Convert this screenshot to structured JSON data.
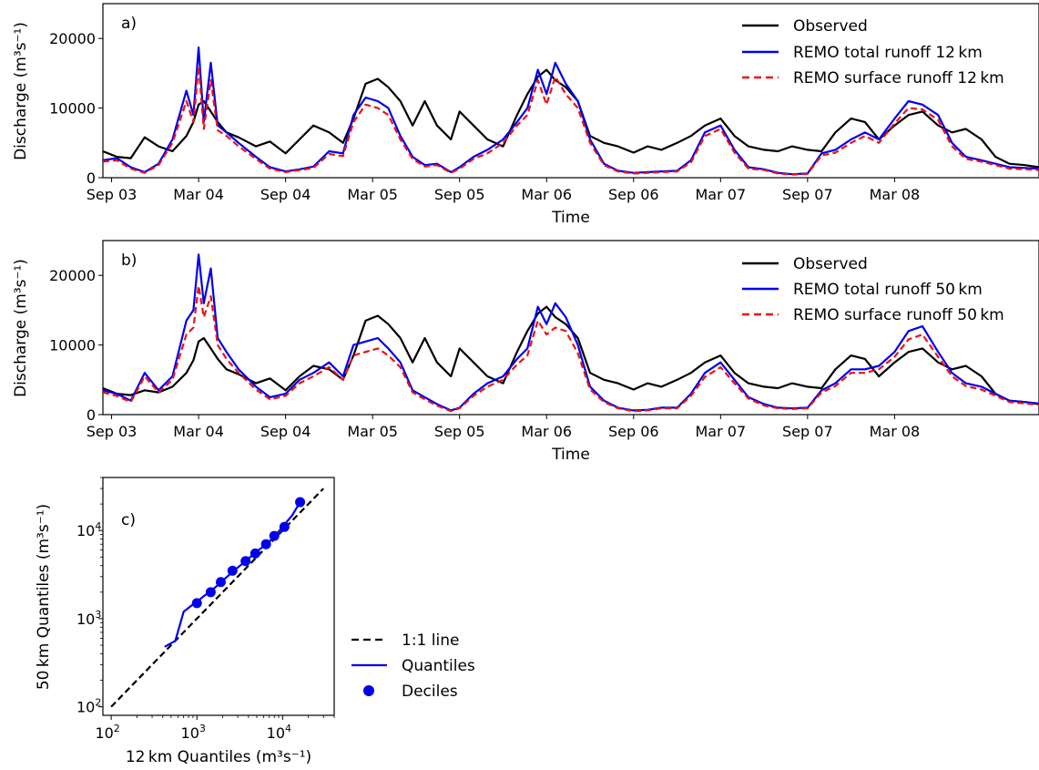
{
  "chart_data": [
    {
      "type": "line",
      "panel_label": "a)",
      "xlabel": "Time",
      "ylabel": "Discharge (m³s⁻¹)",
      "xlim": [
        2003.62,
        2009.0
      ],
      "ylim": [
        0,
        25000
      ],
      "x_ticks": [
        {
          "value": 2003.67,
          "label": "Sep 03"
        },
        {
          "value": 2004.17,
          "label": "Mar 04"
        },
        {
          "value": 2004.67,
          "label": "Sep 04"
        },
        {
          "value": 2005.17,
          "label": "Mar 05"
        },
        {
          "value": 2005.67,
          "label": "Sep 05"
        },
        {
          "value": 2006.17,
          "label": "Mar 06"
        },
        {
          "value": 2006.67,
          "label": "Sep 06"
        },
        {
          "value": 2007.17,
          "label": "Mar 07"
        },
        {
          "value": 2007.67,
          "label": "Sep 07"
        },
        {
          "value": 2008.17,
          "label": "Mar 08"
        }
      ],
      "y_ticks": [
        {
          "value": 0,
          "label": "0"
        },
        {
          "value": 10000,
          "label": "10000"
        },
        {
          "value": 20000,
          "label": "20000"
        }
      ],
      "legend_position": "top-right",
      "x": [
        2003.62,
        2003.7,
        2003.78,
        2003.86,
        2003.94,
        2004.02,
        2004.1,
        2004.14,
        2004.17,
        2004.2,
        2004.24,
        2004.28,
        2004.33,
        2004.4,
        2004.5,
        2004.58,
        2004.67,
        2004.75,
        2004.83,
        2004.92,
        2005.0,
        2005.06,
        2005.13,
        2005.2,
        2005.26,
        2005.33,
        2005.4,
        2005.47,
        2005.54,
        2005.62,
        2005.67,
        2005.75,
        2005.83,
        2005.92,
        2006.0,
        2006.06,
        2006.12,
        2006.17,
        2006.22,
        2006.28,
        2006.35,
        2006.42,
        2006.5,
        2006.58,
        2006.67,
        2006.75,
        2006.83,
        2006.92,
        2007.0,
        2007.08,
        2007.17,
        2007.25,
        2007.33,
        2007.42,
        2007.5,
        2007.58,
        2007.67,
        2007.75,
        2007.83,
        2007.92,
        2008.0,
        2008.08,
        2008.17,
        2008.25,
        2008.33,
        2008.42,
        2008.5,
        2008.58,
        2008.67,
        2008.75,
        2008.83,
        2008.92,
        2009.0
      ],
      "series": [
        {
          "name": "Observed",
          "color": "#000000",
          "dash": "solid",
          "values": [
            3800,
            3000,
            2800,
            5800,
            4500,
            3800,
            6000,
            8000,
            10500,
            11000,
            9500,
            8000,
            6500,
            5800,
            4500,
            5200,
            3500,
            5500,
            7500,
            6500,
            5000,
            8500,
            13500,
            14200,
            13000,
            11000,
            7500,
            11000,
            7500,
            5500,
            9500,
            7500,
            5500,
            4500,
            9000,
            12000,
            14500,
            15500,
            14000,
            13000,
            11000,
            6000,
            5000,
            4500,
            3600,
            4500,
            4000,
            5000,
            6000,
            7500,
            8500,
            6000,
            4500,
            4000,
            3800,
            4500,
            4000,
            3800,
            6500,
            8500,
            8000,
            5500,
            7500,
            9000,
            9500,
            7500,
            6500,
            7000,
            5500,
            3000,
            2000,
            1800,
            1500
          ]
        },
        {
          "name": "REMO total runoff 12 km",
          "color": "#0000ee",
          "dash": "solid",
          "values": [
            2500,
            2800,
            1500,
            800,
            2000,
            5500,
            12500,
            9000,
            18700,
            8000,
            16500,
            7500,
            6500,
            5000,
            3000,
            1500,
            900,
            1200,
            1600,
            3800,
            3500,
            9000,
            11500,
            11000,
            10000,
            6000,
            3000,
            1800,
            2000,
            800,
            1500,
            3000,
            4000,
            5500,
            8000,
            10000,
            15500,
            12000,
            16500,
            13500,
            11000,
            5500,
            2000,
            1000,
            700,
            800,
            900,
            1000,
            2500,
            6500,
            7500,
            4000,
            1500,
            1200,
            700,
            500,
            600,
            3500,
            4000,
            5500,
            6500,
            5500,
            8500,
            11000,
            10500,
            9000,
            5000,
            3000,
            2500,
            2000,
            1500,
            1400,
            1300
          ]
        },
        {
          "name": "REMO surface runoff 12 km",
          "color": "#ee1111",
          "dash": "dashed",
          "values": [
            2300,
            2500,
            1300,
            700,
            1800,
            5000,
            11000,
            8000,
            16000,
            7000,
            14000,
            6800,
            6000,
            4500,
            2700,
            1300,
            800,
            1100,
            1400,
            3400,
            3100,
            8000,
            10500,
            10000,
            9000,
            5500,
            2700,
            1600,
            1800,
            700,
            1300,
            2700,
            3500,
            5000,
            7500,
            9000,
            14000,
            10500,
            14500,
            12000,
            10000,
            5000,
            1800,
            900,
            600,
            700,
            800,
            900,
            2200,
            6000,
            7000,
            3600,
            1300,
            1100,
            600,
            450,
            550,
            3200,
            3600,
            5000,
            6000,
            5000,
            7800,
            10000,
            9800,
            8300,
            4500,
            2700,
            2300,
            1800,
            1300,
            1200,
            1100
          ]
        }
      ]
    },
    {
      "type": "line",
      "panel_label": "b)",
      "xlabel": "Time",
      "ylabel": "Discharge (m³s⁻¹)",
      "xlim": [
        2003.62,
        2009.0
      ],
      "ylim": [
        0,
        25000
      ],
      "x_ticks": [
        {
          "value": 2003.67,
          "label": "Sep 03"
        },
        {
          "value": 2004.17,
          "label": "Mar 04"
        },
        {
          "value": 2004.67,
          "label": "Sep 04"
        },
        {
          "value": 2005.17,
          "label": "Mar 05"
        },
        {
          "value": 2005.67,
          "label": "Sep 05"
        },
        {
          "value": 2006.17,
          "label": "Mar 06"
        },
        {
          "value": 2006.67,
          "label": "Sep 06"
        },
        {
          "value": 2007.17,
          "label": "Mar 07"
        },
        {
          "value": 2007.67,
          "label": "Sep 07"
        },
        {
          "value": 2008.17,
          "label": "Mar 08"
        }
      ],
      "y_ticks": [
        {
          "value": 0,
          "label": "0"
        },
        {
          "value": 10000,
          "label": "10000"
        },
        {
          "value": 20000,
          "label": "20000"
        }
      ],
      "legend_position": "top-right",
      "x": [
        2003.62,
        2003.7,
        2003.78,
        2003.86,
        2003.94,
        2004.02,
        2004.1,
        2004.14,
        2004.17,
        2004.2,
        2004.24,
        2004.28,
        2004.33,
        2004.4,
        2004.5,
        2004.58,
        2004.67,
        2004.75,
        2004.83,
        2004.92,
        2005.0,
        2005.06,
        2005.13,
        2005.2,
        2005.26,
        2005.33,
        2005.4,
        2005.47,
        2005.54,
        2005.62,
        2005.67,
        2005.75,
        2005.83,
        2005.92,
        2006.0,
        2006.06,
        2006.12,
        2006.17,
        2006.22,
        2006.28,
        2006.35,
        2006.42,
        2006.5,
        2006.58,
        2006.67,
        2006.75,
        2006.83,
        2006.92,
        2007.0,
        2007.08,
        2007.17,
        2007.25,
        2007.33,
        2007.42,
        2007.5,
        2007.58,
        2007.67,
        2007.75,
        2007.83,
        2007.92,
        2008.0,
        2008.08,
        2008.17,
        2008.25,
        2008.33,
        2008.42,
        2008.5,
        2008.58,
        2008.67,
        2008.75,
        2008.83,
        2008.92,
        2009.0
      ],
      "series": [
        {
          "name": "Observed",
          "color": "#000000",
          "dash": "solid",
          "values": [
            3800,
            3000,
            2800,
            3500,
            3200,
            4000,
            6000,
            7800,
            10500,
            11000,
            9500,
            8000,
            6500,
            5800,
            4500,
            5200,
            3500,
            5500,
            7000,
            6500,
            5000,
            8500,
            13500,
            14200,
            13000,
            11000,
            7500,
            11000,
            7500,
            5500,
            9500,
            7500,
            5500,
            4500,
            9000,
            12000,
            14500,
            15500,
            14000,
            13000,
            11000,
            6000,
            5000,
            4500,
            3600,
            4500,
            4000,
            5000,
            6000,
            7500,
            8500,
            6000,
            4500,
            4000,
            3800,
            4500,
            4000,
            3800,
            6500,
            8500,
            8000,
            5500,
            7500,
            9000,
            9500,
            7500,
            6500,
            7000,
            5500,
            3000,
            2000,
            1800,
            1500
          ]
        },
        {
          "name": "REMO total runoff 50 km",
          "color": "#0000ee",
          "dash": "solid",
          "values": [
            3500,
            3000,
            2000,
            6000,
            3500,
            5500,
            13500,
            15000,
            23000,
            16000,
            21000,
            11000,
            9000,
            6500,
            4000,
            2500,
            3000,
            5000,
            6000,
            7500,
            5500,
            10000,
            10500,
            11000,
            9500,
            7500,
            3500,
            2500,
            1500,
            600,
            1000,
            3000,
            4500,
            5500,
            8000,
            9500,
            15500,
            13000,
            16000,
            14000,
            10000,
            4000,
            2000,
            1000,
            600,
            700,
            1000,
            1000,
            3000,
            6000,
            7500,
            5000,
            2500,
            1500,
            1000,
            900,
            1000,
            3500,
            4500,
            6500,
            6500,
            7000,
            9000,
            12000,
            12700,
            9000,
            6000,
            4500,
            4000,
            3000,
            2000,
            1800,
            1600
          ]
        },
        {
          "name": "REMO surface runoff 50 km",
          "color": "#ee1111",
          "dash": "dashed",
          "values": [
            3200,
            2700,
            1800,
            5500,
            3200,
            5000,
            11500,
            12500,
            18500,
            14000,
            17000,
            10000,
            8000,
            6000,
            3600,
            2200,
            2700,
            4500,
            5500,
            6800,
            5000,
            8500,
            9000,
            9500,
            8500,
            6800,
            3200,
            2200,
            1300,
            500,
            900,
            2700,
            4000,
            5000,
            7200,
            8500,
            13500,
            11500,
            12500,
            12000,
            8800,
            3600,
            1800,
            900,
            500,
            600,
            900,
            900,
            2700,
            5400,
            6800,
            4500,
            2300,
            1300,
            900,
            800,
            900,
            3200,
            4100,
            6000,
            6000,
            6500,
            8300,
            10800,
            11500,
            8300,
            5500,
            4100,
            3600,
            2700,
            1800,
            1600,
            1400
          ]
        }
      ]
    },
    {
      "type": "scatter",
      "panel_label": "c)",
      "xlabel": "12 km Quantiles (m³s⁻¹)",
      "ylabel": "50 km Quantiles (m³s⁻¹)",
      "x_scale": "log",
      "y_scale": "log",
      "xlim": [
        80,
        40000
      ],
      "ylim": [
        80,
        40000
      ],
      "x_ticks": [
        {
          "value": 100,
          "base": "10",
          "exp": "2"
        },
        {
          "value": 1000,
          "base": "10",
          "exp": "3"
        },
        {
          "value": 10000,
          "base": "10",
          "exp": "4"
        }
      ],
      "y_ticks": [
        {
          "value": 100,
          "base": "10",
          "exp": "2"
        },
        {
          "value": 1000,
          "base": "10",
          "exp": "3"
        },
        {
          "value": 10000,
          "base": "10",
          "exp": "4"
        }
      ],
      "legend_position": "right, outside",
      "series": [
        {
          "name": "1:1 line",
          "kind": "line",
          "dash": "dashed",
          "color": "#000000",
          "x": [
            100,
            30000
          ],
          "y": [
            100,
            30000
          ]
        },
        {
          "name": "Quantiles",
          "kind": "line",
          "dash": "solid",
          "color": "#0000ee",
          "x": [
            420,
            560,
            700,
            900,
            1000,
            1200,
            1500,
            2000,
            2700,
            3700,
            5000,
            6500,
            8000,
            10000,
            13000,
            16000
          ],
          "y": [
            480,
            560,
            1200,
            1450,
            1550,
            1800,
            2100,
            2700,
            3500,
            4500,
            5800,
            7000,
            8500,
            11000,
            15000,
            21000
          ]
        },
        {
          "name": "Deciles",
          "kind": "points",
          "color": "#0000ee",
          "x": [
            1000,
            1450,
            1900,
            2600,
            3700,
            4800,
            6400,
            8000,
            10500,
            16000
          ],
          "y": [
            1500,
            2000,
            2600,
            3500,
            4500,
            5500,
            7000,
            8700,
            11000,
            21000
          ]
        }
      ]
    }
  ]
}
